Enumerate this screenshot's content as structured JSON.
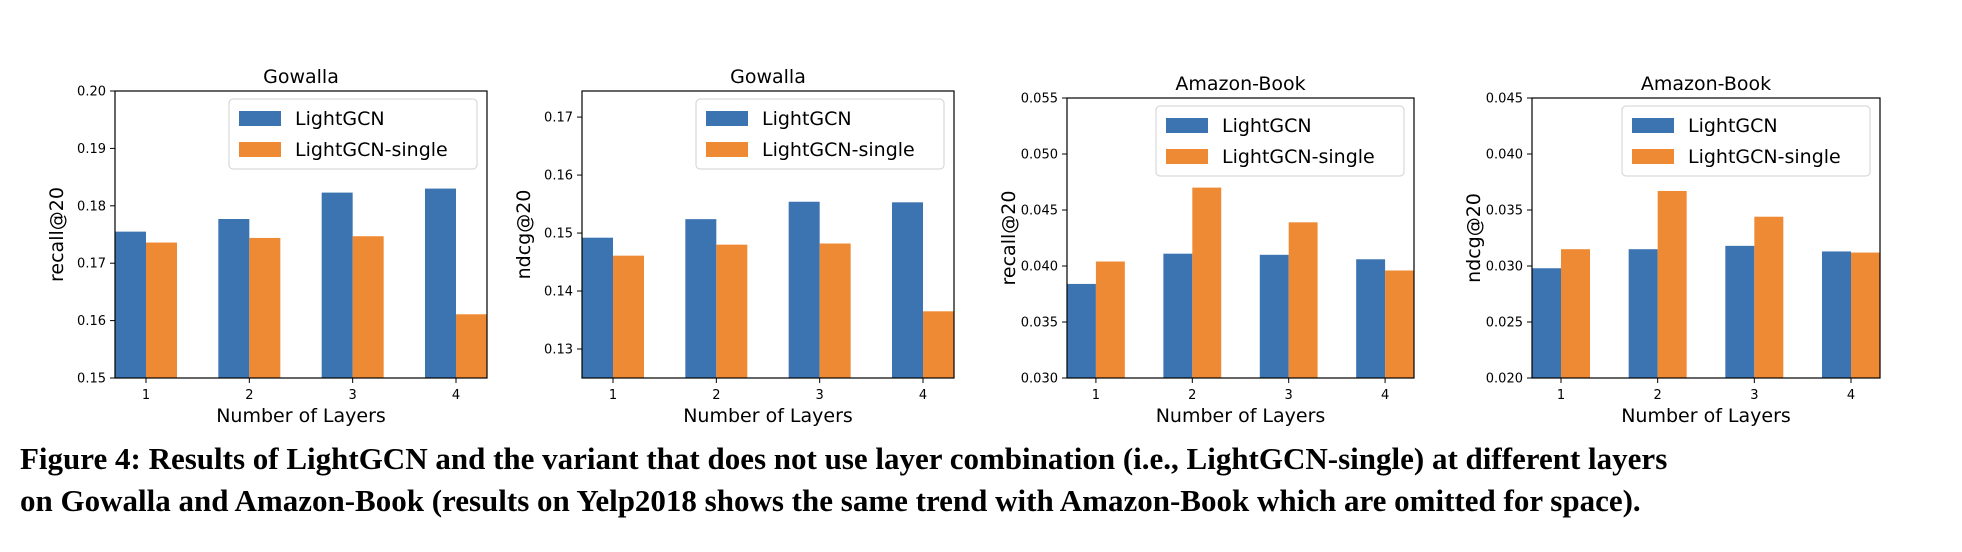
{
  "figure": {
    "caption_lines": [
      "Figure 4: Results of LightGCN and the variant that does not use layer combination (i.e., LightGCN-single) at different layers",
      "on Gowalla and Amazon-Book (results on Yelp2018 shows the same trend with Amazon-Book which are omitted for space)."
    ]
  },
  "colors": {
    "LightGCN": "#3c74b2",
    "LightGCN-single": "#ef8a34"
  },
  "chart_data": [
    {
      "type": "bar",
      "title": "Gowalla",
      "xlabel": "Number of Layers",
      "ylabel": "recall@20",
      "categories": [
        "1",
        "2",
        "3",
        "4"
      ],
      "ylim": [
        0.15,
        0.2
      ],
      "yticks": [
        "0.15",
        "0.16",
        "0.17",
        "0.18",
        "0.19",
        "0.20"
      ],
      "legend": "top-right",
      "series": [
        {
          "name": "LightGCN",
          "values": [
            0.1755,
            0.1777,
            0.1823,
            0.183
          ]
        },
        {
          "name": "LightGCN-single",
          "values": [
            0.1736,
            0.1744,
            0.1747,
            0.1611
          ]
        }
      ]
    },
    {
      "type": "bar",
      "title": "Gowalla",
      "xlabel": "Number of Layers",
      "ylabel": "ndcg@20",
      "categories": [
        "1",
        "2",
        "3",
        "4"
      ],
      "ylim": [
        0.125,
        0.1745
      ],
      "yticks": [
        "0.13",
        "0.14",
        "0.15",
        "0.16",
        "0.17"
      ],
      "legend": "top-right",
      "series": [
        {
          "name": "LightGCN",
          "values": [
            0.1492,
            0.1524,
            0.1554,
            0.1553
          ]
        },
        {
          "name": "LightGCN-single",
          "values": [
            0.1461,
            0.148,
            0.1482,
            0.1365
          ]
        }
      ]
    },
    {
      "type": "bar",
      "title": "Amazon-Book",
      "xlabel": "Number of Layers",
      "ylabel": "recall@20",
      "categories": [
        "1",
        "2",
        "3",
        "4"
      ],
      "ylim": [
        0.03,
        0.055
      ],
      "yticks": [
        "0.030",
        "0.035",
        "0.040",
        "0.045",
        "0.050",
        "0.055"
      ],
      "legend": "top-right",
      "series": [
        {
          "name": "LightGCN",
          "values": [
            0.0384,
            0.0411,
            0.041,
            0.0406
          ]
        },
        {
          "name": "LightGCN-single",
          "values": [
            0.0404,
            0.047,
            0.0439,
            0.0396
          ]
        }
      ]
    },
    {
      "type": "bar",
      "title": "Amazon-Book",
      "xlabel": "Number of Layers",
      "ylabel": "ndcg@20",
      "categories": [
        "1",
        "2",
        "3",
        "4"
      ],
      "ylim": [
        0.02,
        0.045
      ],
      "yticks": [
        "0.020",
        "0.025",
        "0.030",
        "0.035",
        "0.040",
        "0.045"
      ],
      "legend": "top-right",
      "series": [
        {
          "name": "LightGCN",
          "values": [
            0.0298,
            0.0315,
            0.0318,
            0.0313
          ]
        },
        {
          "name": "LightGCN-single",
          "values": [
            0.0315,
            0.0367,
            0.0344,
            0.0312
          ]
        }
      ]
    }
  ]
}
